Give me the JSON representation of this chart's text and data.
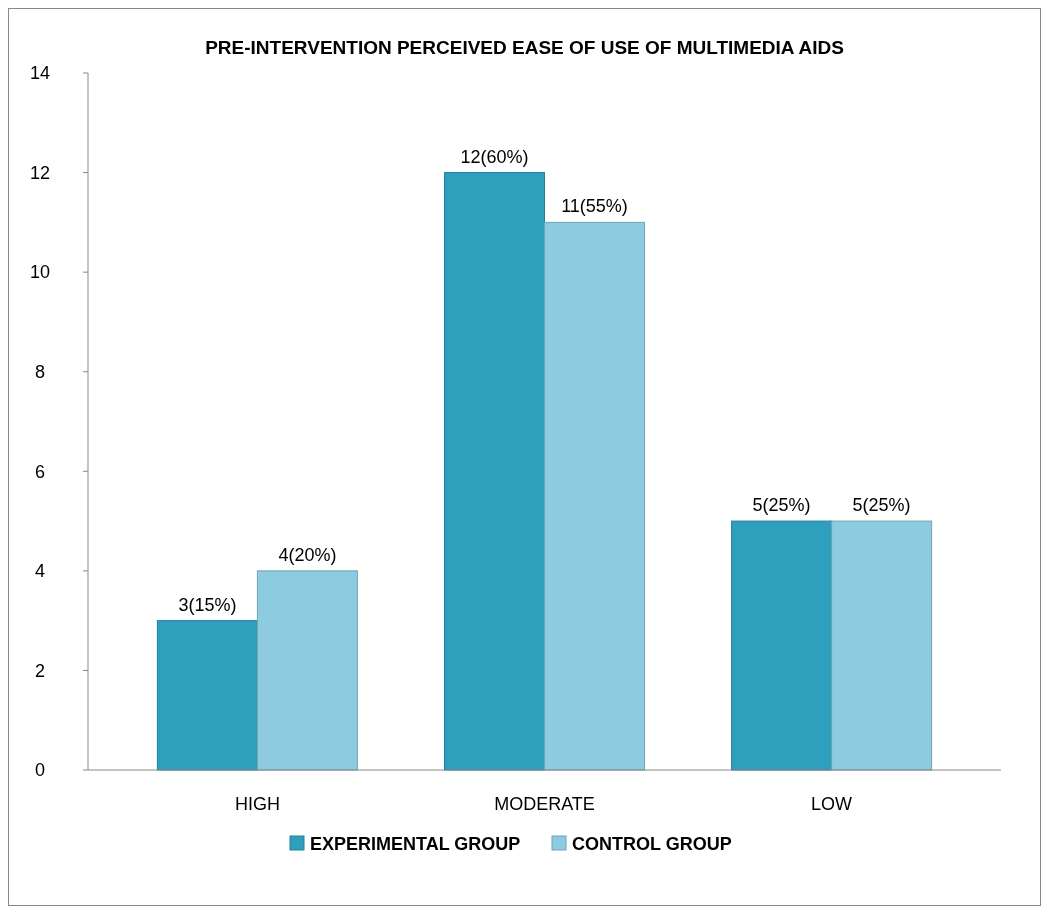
{
  "chart_data": {
    "type": "bar",
    "title": "PRE-INTERVENTION PERCEIVED EASE OF USE OF MULTIMEDIA AIDS",
    "categories": [
      "HIGH",
      "MODERATE",
      "LOW"
    ],
    "series": [
      {
        "name": "EXPERIMENTAL GROUP",
        "color": "#2e9fbd",
        "values": [
          3,
          12,
          5
        ],
        "value_labels": [
          "3(15%)",
          "12(60%)",
          "5(25%)"
        ]
      },
      {
        "name": "CONTROL GROUP",
        "color": "#8ccbe0",
        "values": [
          4,
          11,
          5
        ],
        "value_labels": [
          "4(20%)",
          "11(55%)",
          "5(25%)"
        ]
      }
    ],
    "ylim": [
      0,
      14
    ],
    "yticks": [
      0,
      2,
      4,
      6,
      8,
      10,
      12,
      14
    ],
    "grid": false,
    "legend": "bottom"
  }
}
